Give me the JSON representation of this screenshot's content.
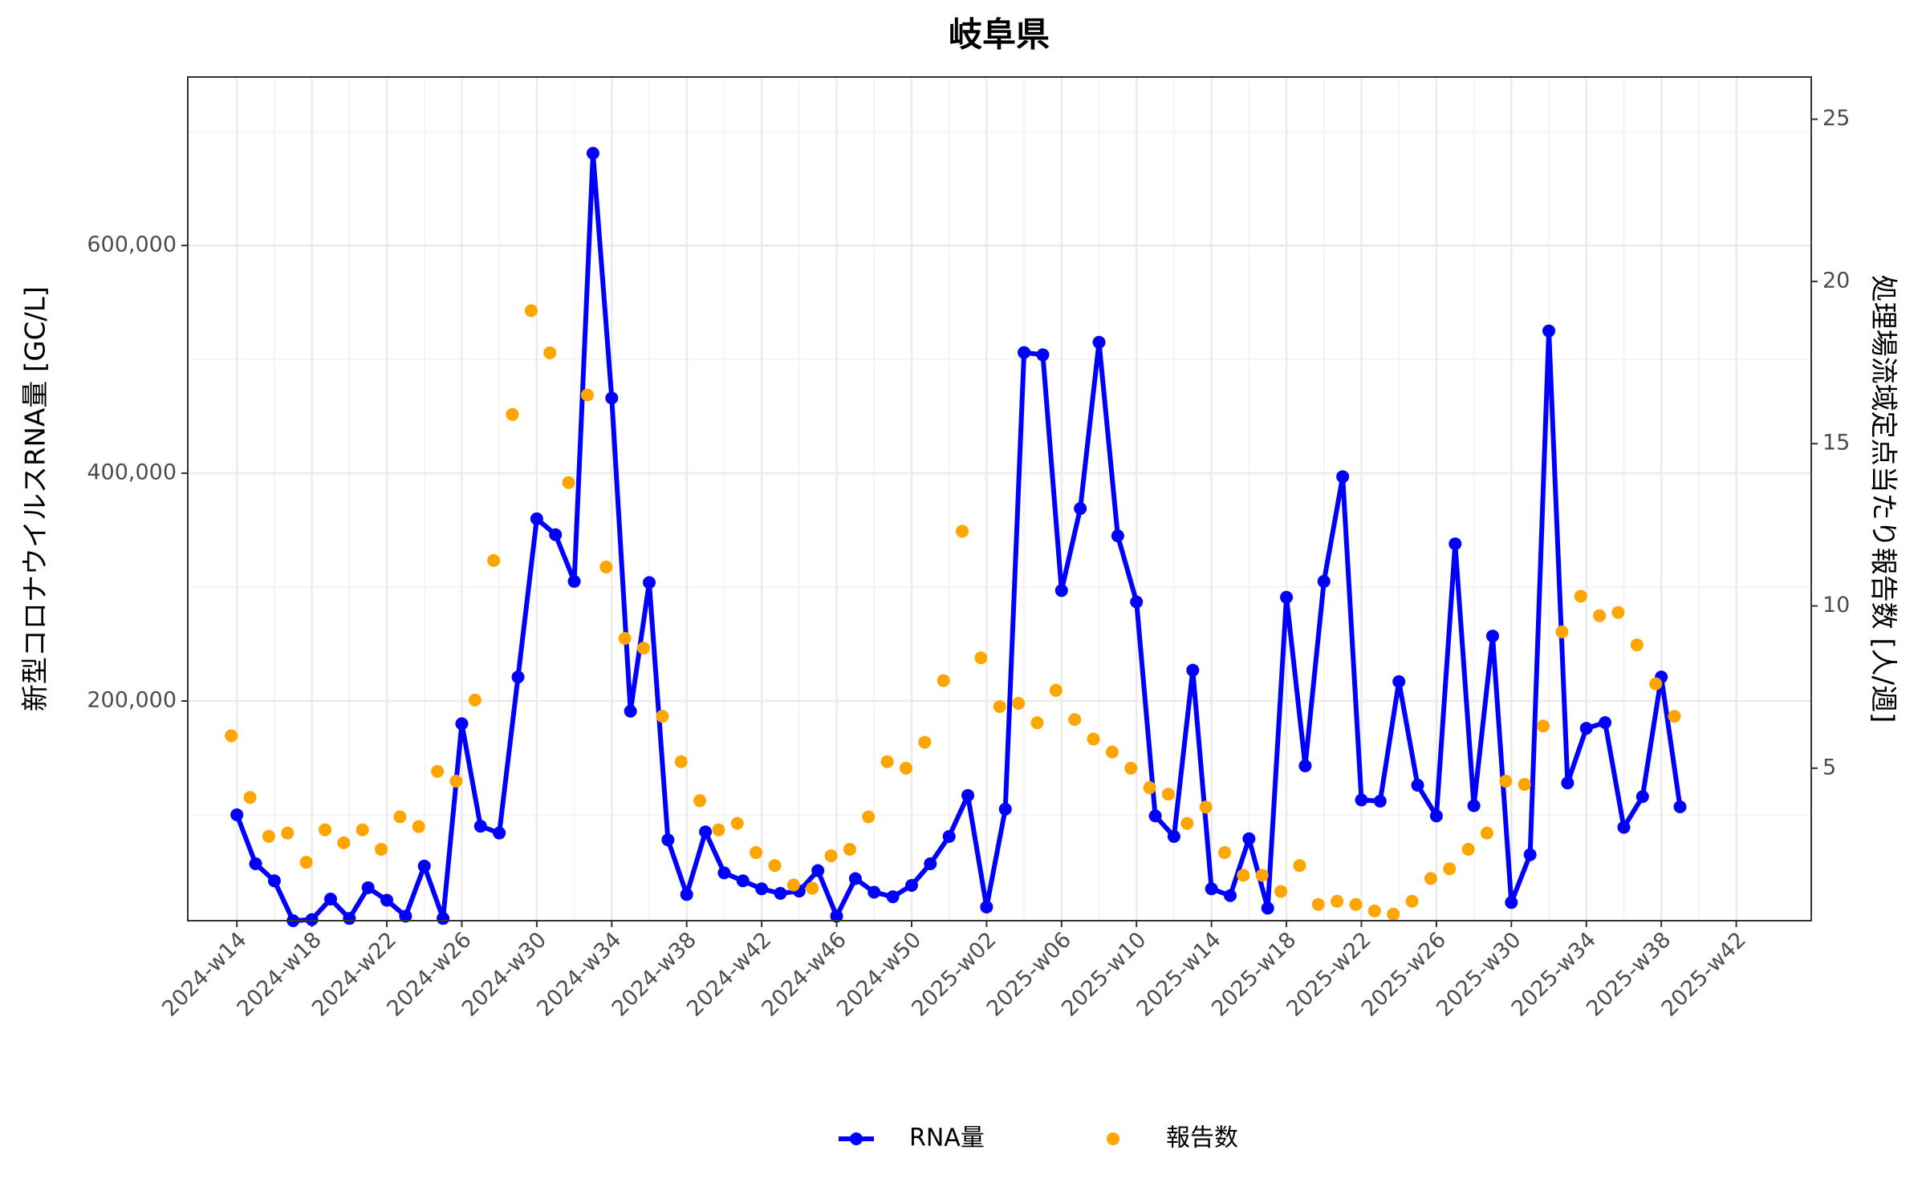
{
  "chart_data": {
    "type": "line",
    "title": "岐阜県",
    "y_label": "新型コロナウイルスRNA量 [GC/L]",
    "y2_label": "処理場流域定点当たり報告数 [人/週]",
    "categories": [
      "2024-w14",
      null,
      null,
      null,
      "2024-w18",
      null,
      null,
      null,
      "2024-w22",
      null,
      null,
      null,
      "2024-w26",
      null,
      null,
      null,
      "2024-w30",
      null,
      null,
      null,
      "2024-w34",
      null,
      null,
      null,
      "2024-w38",
      null,
      null,
      null,
      "2024-w42",
      null,
      null,
      null,
      "2024-w46",
      null,
      null,
      null,
      "2024-w50",
      null,
      null,
      null,
      "2025-w02",
      null,
      null,
      null,
      "2025-w06",
      null,
      null,
      null,
      "2025-w10",
      null,
      null,
      null,
      "2025-w14",
      null,
      null,
      null,
      "2025-w18",
      null,
      null,
      null,
      "2025-w22",
      null,
      null,
      null,
      "2025-w26",
      null,
      null,
      null,
      "2025-w30",
      null,
      null,
      null,
      "2025-w34",
      null,
      null,
      null,
      "2025-w38",
      null,
      null,
      null,
      "2025-w42"
    ],
    "series": [
      {
        "name": "RNA量",
        "color": "#0000ff",
        "style": "line-points",
        "axis": "y",
        "values": [
          100000,
          57000,
          42000,
          7000,
          8000,
          26000,
          9000,
          36000,
          25000,
          11000,
          55000,
          9000,
          180000,
          90000,
          84000,
          221000,
          360000,
          346000,
          305000,
          681000,
          466000,
          191000,
          304000,
          78000,
          30000,
          85000,
          49000,
          42000,
          35000,
          31000,
          33000,
          51000,
          11000,
          44000,
          32000,
          28000,
          38000,
          57000,
          81000,
          117000,
          19000,
          105000,
          506000,
          504000,
          297000,
          369000,
          515000,
          345000,
          287000,
          99000,
          81000,
          227000,
          35000,
          29000,
          79000,
          18000,
          291000,
          143000,
          305000,
          397000,
          113000,
          112000,
          217000,
          126000,
          99000,
          338000,
          108000,
          257000,
          23000,
          65000,
          525000,
          128000,
          176000,
          181000,
          89000,
          116000,
          221000,
          107000,
          null,
          null,
          null
        ]
      },
      {
        "name": "報告数",
        "color": "#ffa500",
        "style": "points",
        "axis": "y2",
        "values": [
          6.0,
          4.1,
          2.9,
          3.0,
          2.1,
          3.1,
          2.7,
          3.1,
          2.5,
          3.5,
          3.2,
          4.9,
          4.6,
          7.1,
          11.4,
          15.9,
          19.1,
          17.8,
          13.8,
          16.5,
          11.2,
          9.0,
          8.7,
          6.6,
          5.2,
          4.0,
          3.1,
          3.3,
          2.4,
          2.0,
          1.4,
          1.3,
          2.3,
          2.5,
          3.5,
          5.2,
          5.0,
          5.8,
          7.7,
          12.3,
          8.4,
          6.9,
          7.0,
          6.4,
          7.4,
          6.5,
          5.9,
          5.5,
          5.0,
          4.4,
          4.2,
          3.3,
          3.8,
          2.4,
          1.7,
          1.7,
          1.2,
          2.0,
          0.8,
          0.9,
          0.8,
          0.6,
          0.5,
          0.9,
          1.6,
          1.9,
          2.5,
          3.0,
          4.6,
          4.5,
          6.3,
          9.2,
          10.3,
          9.7,
          9.8,
          8.8,
          7.6,
          6.6,
          null,
          null,
          null
        ]
      }
    ],
    "ylim": [
      7000,
      748000
    ],
    "yticks": [
      {
        "value": 200000,
        "label": "200,000"
      },
      {
        "value": 400000,
        "label": "400,000"
      },
      {
        "value": 600000,
        "label": "600,000"
      }
    ],
    "y2lim": [
      0.3,
      26.3
    ],
    "y2ticks": [
      5,
      10,
      15,
      20,
      25
    ],
    "grid": true,
    "legend": "bottom"
  }
}
